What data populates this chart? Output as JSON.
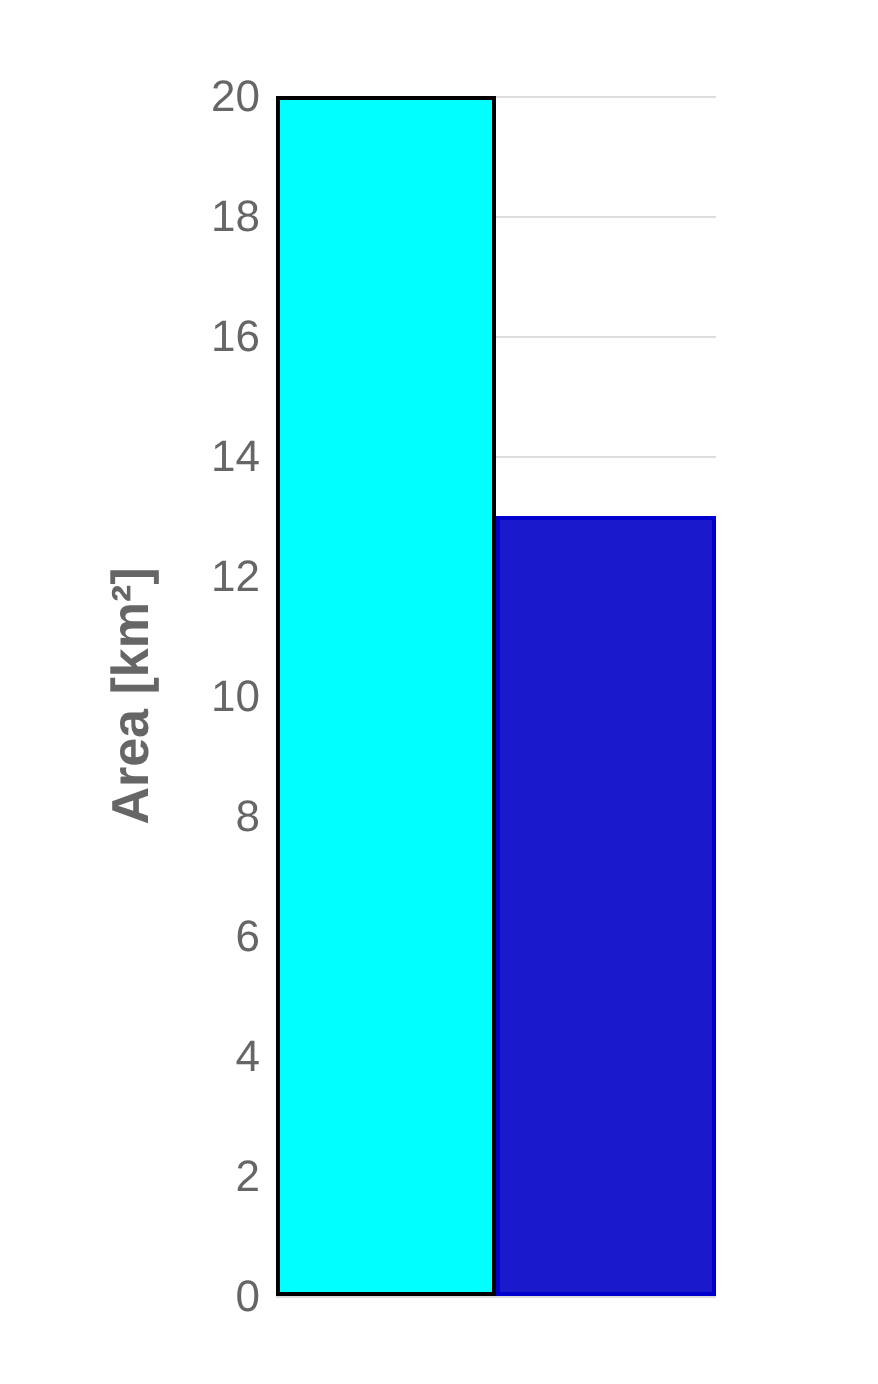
{
  "chart_data": {
    "type": "bar",
    "ylabel": "Area [km²]",
    "categories": [
      null,
      null
    ],
    "values": [
      20,
      13
    ],
    "colors": [
      "#00ffff",
      "#1a1acc"
    ],
    "ylim": [
      0,
      20
    ],
    "yticks": [
      0,
      2,
      4,
      6,
      8,
      10,
      12,
      14,
      16,
      18,
      20
    ],
    "grid": "y",
    "tick_labels": "y"
  }
}
